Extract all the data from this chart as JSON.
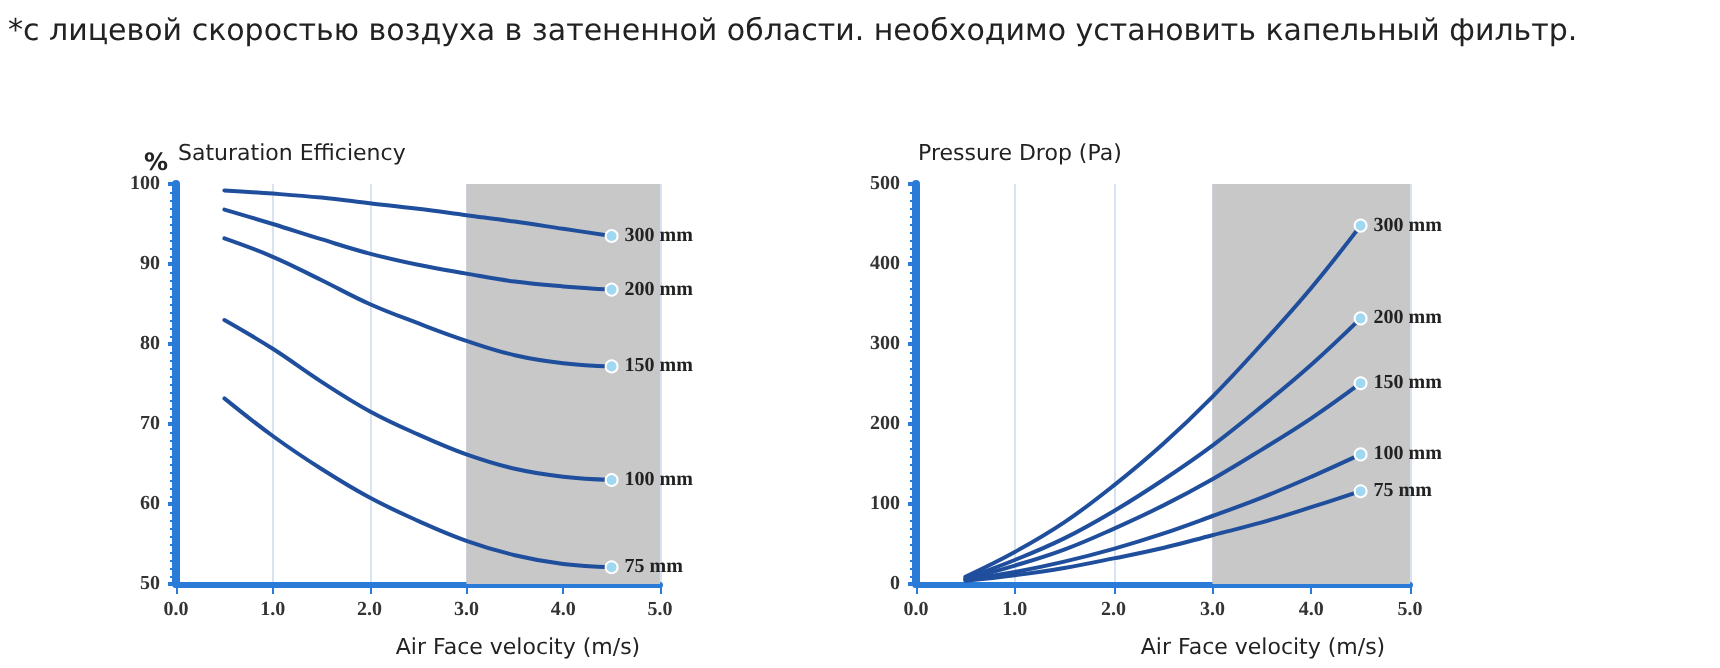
{
  "chart_data": [
    {
      "type": "line",
      "title": "Saturation Efficiency",
      "ylabel": "%",
      "xlabel": "Air Face velocity (m/s)",
      "annotations": [
        "*с лицевой скоростью воздуха в затененной области. необходимо установить капельный фильтр."
      ],
      "x": [
        0.5,
        1,
        1.5,
        2,
        2.5,
        3,
        3.5,
        4,
        4.5
      ],
      "series": [
        {
          "name": "300 mm",
          "color": "#1f4e9c",
          "values": [
            99.2,
            98.8,
            98.3,
            97.6,
            96.9,
            96.1,
            95.3,
            94.4,
            93.5
          ]
        },
        {
          "name": "200 mm",
          "color": "#1f4e9c",
          "values": [
            96.8,
            95.0,
            93.1,
            91.3,
            89.9,
            88.8,
            87.8,
            87.2,
            86.8
          ]
        },
        {
          "name": "150 mm",
          "color": "#1f4e9c",
          "values": [
            93.2,
            90.9,
            88.0,
            85.0,
            82.6,
            80.4,
            78.6,
            77.6,
            77.2
          ]
        },
        {
          "name": "100 mm",
          "color": "#1f4e9c",
          "values": [
            83.0,
            79.4,
            75.3,
            71.6,
            68.7,
            66.2,
            64.4,
            63.4,
            63.0
          ]
        },
        {
          "name": "75 mm",
          "color": "#1f4e9c",
          "values": [
            73.2,
            68.5,
            64.4,
            60.8,
            57.9,
            55.4,
            53.6,
            52.5,
            52.1
          ]
        }
      ],
      "xlim": [
        0,
        5
      ],
      "xticks": [
        {
          "value": 0,
          "label": "0.0"
        },
        {
          "value": 1,
          "label": "1.0"
        },
        {
          "value": 2,
          "label": "2.0"
        },
        {
          "value": 3,
          "label": "3.0"
        },
        {
          "value": 4,
          "label": "4.0"
        },
        {
          "value": 5,
          "label": "5.0"
        }
      ],
      "ylim": [
        50,
        100
      ],
      "yticks": [
        50,
        60,
        70,
        80,
        90,
        100
      ],
      "bands": [
        {
          "axis": "x",
          "from": 3,
          "to": 5,
          "color": "#c8c8c8"
        }
      ],
      "grid": "x"
    },
    {
      "type": "line",
      "title": "Pressure Drop (Pa)",
      "xlabel": "Air Face velocity (m/s)",
      "x": [
        0.5,
        1,
        1.5,
        2,
        2.5,
        3,
        3.5,
        4,
        4.5
      ],
      "series": [
        {
          "name": "300 mm",
          "color": "#1f4e9c",
          "values": [
            9,
            40,
            77,
            123,
            175,
            234,
            300,
            370,
            448
          ]
        },
        {
          "name": "200 mm",
          "color": "#1f4e9c",
          "values": [
            7,
            30,
            57,
            91,
            130,
            173,
            222,
            274,
            332
          ]
        },
        {
          "name": "150 mm",
          "color": "#1f4e9c",
          "values": [
            6,
            23,
            43,
            69,
            98,
            131,
            168,
            207,
            251
          ]
        },
        {
          "name": "100 mm",
          "color": "#1f4e9c",
          "values": [
            5,
            15,
            28,
            44,
            63,
            85,
            108,
            134,
            162
          ]
        },
        {
          "name": "75 mm",
          "color": "#1f4e9c",
          "values": [
            4,
            11,
            20,
            32,
            45,
            61,
            77,
            96,
            116
          ]
        }
      ],
      "xlim": [
        0,
        5
      ],
      "xticks": [
        {
          "value": 0,
          "label": "0.0"
        },
        {
          "value": 1,
          "label": "1.0"
        },
        {
          "value": 2,
          "label": "2.0"
        },
        {
          "value": 3,
          "label": "3.0"
        },
        {
          "value": 4,
          "label": "4.0"
        },
        {
          "value": 5,
          "label": "5.0"
        }
      ],
      "ylim": [
        0,
        500
      ],
      "yticks": [
        0,
        100,
        200,
        300,
        400,
        500
      ],
      "bands": [
        {
          "axis": "x",
          "from": 3,
          "to": 5,
          "color": "#c8c8c8"
        }
      ],
      "grid": "x"
    }
  ]
}
